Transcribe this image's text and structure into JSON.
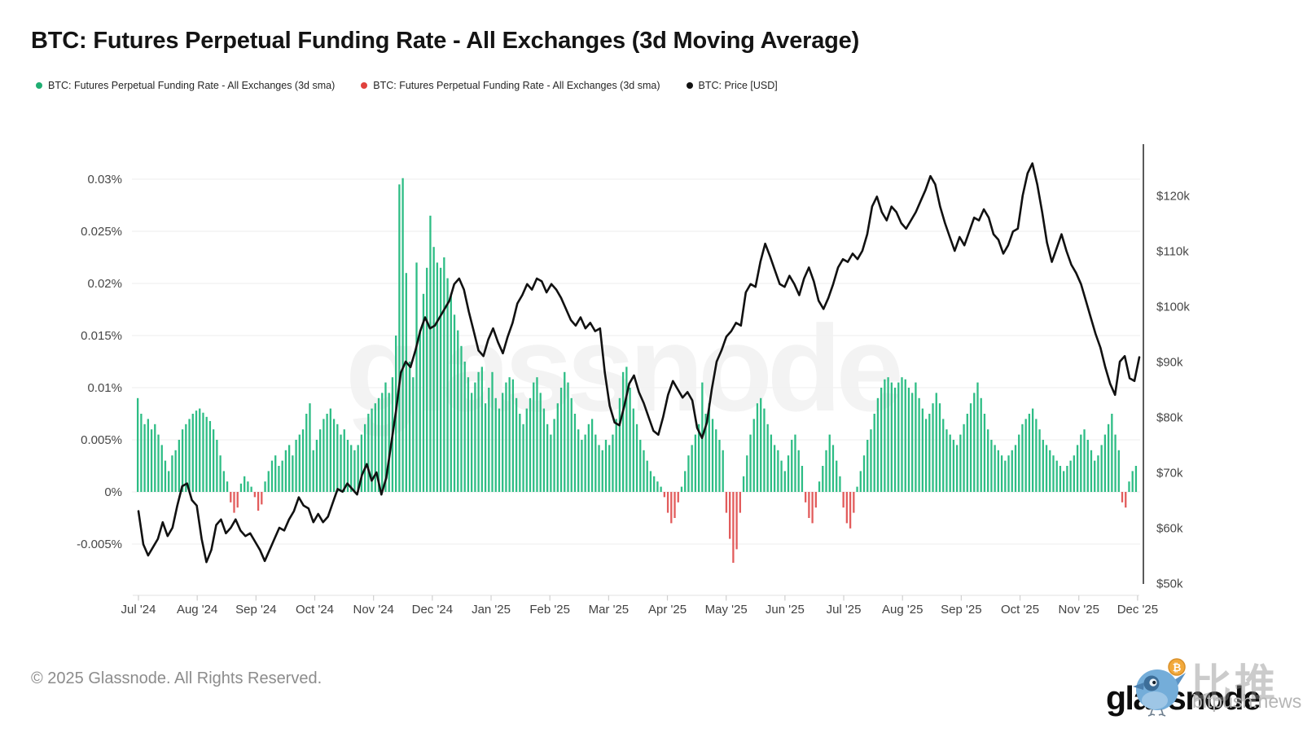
{
  "header": {
    "title": "BTC: Futures Perpetual Funding Rate - All Exchanges (3d Moving Average)"
  },
  "legend": {
    "items": [
      {
        "label": "BTC: Futures Perpetual Funding Rate - All Exchanges (3d sma)",
        "color": "#1FAE72"
      },
      {
        "label": "BTC: Futures Perpetual Funding Rate - All Exchanges (3d sma)",
        "color": "#E0413D"
      },
      {
        "label": "BTC: Price [USD]",
        "color": "#111111"
      }
    ]
  },
  "watermark": {
    "text": "glassnode"
  },
  "footer": {
    "copyright": "© 2025 Glassnode. All Rights Reserved.",
    "logo_text": "glassnode",
    "bitpush_site": "bitpush.news",
    "bitpush_cn": "比推",
    "btc_symbol": "₿"
  },
  "chart_data": {
    "type": "combo",
    "title": "BTC: Futures Perpetual Funding Rate - All Exchanges (3d Moving Average)",
    "grid": true,
    "legend_position": "top-left",
    "x_axis": {
      "tick_labels": [
        "Jul '24",
        "Aug '24",
        "Sep '24",
        "Oct '24",
        "Nov '24",
        "Dec '24",
        "Jan '25",
        "Feb '25",
        "Mar '25",
        "Apr '25",
        "May '25",
        "Jun '25",
        "Jul '25",
        "Aug '25",
        "Sep '25",
        "Oct '25",
        "Nov '25",
        "Dec '25"
      ]
    },
    "left_axis": {
      "unit": "%",
      "tick_labels": [
        "0.03%",
        "0.025%",
        "0.02%",
        "0.015%",
        "0.01%",
        "0.005%",
        "0%",
        "-0.005%"
      ],
      "tick_values": [
        0.03,
        0.025,
        0.02,
        0.015,
        0.01,
        0.005,
        0,
        -0.005
      ],
      "range_pct": [
        -0.009,
        0.0335
      ]
    },
    "right_axis": {
      "unit": "USD",
      "tick_labels": [
        "$120k",
        "$110k",
        "$100k",
        "$90k",
        "$80k",
        "$70k",
        "$60k",
        "$50k"
      ],
      "tick_values_usd_k": [
        120,
        110,
        100,
        90,
        80,
        70,
        60,
        50
      ],
      "range_usd_k": [
        48.5,
        129
      ]
    },
    "series": [
      {
        "name": "BTC: Futures Perpetual Funding Rate - All Exchanges (3d sma)",
        "type": "bar",
        "y_axis": "left",
        "unit": "percent",
        "color_positive": "#2EBD85",
        "color_negative": "#E25C5C",
        "values_pct": [
          0.009,
          0.0075,
          0.0065,
          0.007,
          0.006,
          0.0065,
          0.0055,
          0.0045,
          0.003,
          0.002,
          0.0035,
          0.004,
          0.005,
          0.006,
          0.0065,
          0.007,
          0.0075,
          0.0078,
          0.008,
          0.0076,
          0.0072,
          0.0068,
          0.006,
          0.005,
          0.0035,
          0.002,
          0.001,
          -0.001,
          -0.002,
          -0.0015,
          0.0008,
          0.0015,
          0.001,
          0.0005,
          -0.0005,
          -0.0018,
          -0.0012,
          0.001,
          0.002,
          0.003,
          0.0035,
          0.0025,
          0.003,
          0.004,
          0.0045,
          0.0035,
          0.005,
          0.0055,
          0.006,
          0.0075,
          0.0085,
          0.004,
          0.005,
          0.006,
          0.007,
          0.0075,
          0.008,
          0.007,
          0.0065,
          0.0055,
          0.006,
          0.005,
          0.0045,
          0.004,
          0.0045,
          0.0055,
          0.0065,
          0.0075,
          0.008,
          0.0085,
          0.009,
          0.0095,
          0.0105,
          0.0095,
          0.011,
          0.015,
          0.0295,
          0.0301,
          0.021,
          0.0125,
          0.011,
          0.022,
          0.0155,
          0.019,
          0.0215,
          0.0265,
          0.0235,
          0.022,
          0.0215,
          0.0225,
          0.0205,
          0.019,
          0.017,
          0.0155,
          0.014,
          0.0125,
          0.011,
          0.0095,
          0.0105,
          0.0115,
          0.012,
          0.0085,
          0.01,
          0.0115,
          0.009,
          0.008,
          0.0095,
          0.0105,
          0.011,
          0.0108,
          0.009,
          0.0075,
          0.0065,
          0.008,
          0.009,
          0.0105,
          0.011,
          0.0095,
          0.008,
          0.0065,
          0.0055,
          0.007,
          0.0085,
          0.01,
          0.0115,
          0.0105,
          0.009,
          0.0075,
          0.006,
          0.005,
          0.0055,
          0.0065,
          0.007,
          0.0055,
          0.0045,
          0.004,
          0.005,
          0.0045,
          0.0055,
          0.007,
          0.009,
          0.0115,
          0.012,
          0.01,
          0.008,
          0.0065,
          0.005,
          0.004,
          0.003,
          0.002,
          0.0015,
          0.001,
          0.0005,
          -0.0005,
          -0.002,
          -0.003,
          -0.0025,
          -0.001,
          0.0005,
          0.002,
          0.0035,
          0.0045,
          0.0055,
          0.0065,
          0.0105,
          0.0075,
          0.0085,
          0.007,
          0.006,
          0.005,
          0.004,
          -0.002,
          -0.0045,
          -0.0068,
          -0.0055,
          -0.002,
          0.0015,
          0.0035,
          0.0055,
          0.007,
          0.0085,
          0.009,
          0.008,
          0.0065,
          0.0055,
          0.0045,
          0.004,
          0.003,
          0.002,
          0.0035,
          0.005,
          0.0055,
          0.004,
          0.0025,
          -0.001,
          -0.0025,
          -0.003,
          -0.0015,
          0.001,
          0.0025,
          0.004,
          0.0055,
          0.0045,
          0.003,
          0.0015,
          -0.0015,
          -0.003,
          -0.0035,
          -0.002,
          0.0005,
          0.002,
          0.0035,
          0.005,
          0.006,
          0.0075,
          0.009,
          0.01,
          0.0108,
          0.011,
          0.0105,
          0.01,
          0.0105,
          0.011,
          0.0108,
          0.01,
          0.0095,
          0.0105,
          0.009,
          0.008,
          0.007,
          0.0075,
          0.0085,
          0.0095,
          0.0085,
          0.007,
          0.006,
          0.0055,
          0.005,
          0.0045,
          0.0055,
          0.0065,
          0.0075,
          0.0085,
          0.0095,
          0.0105,
          0.009,
          0.0075,
          0.006,
          0.005,
          0.0045,
          0.004,
          0.0035,
          0.003,
          0.0035,
          0.004,
          0.0045,
          0.0055,
          0.0065,
          0.007,
          0.0075,
          0.008,
          0.007,
          0.006,
          0.005,
          0.0045,
          0.004,
          0.0035,
          0.003,
          0.0025,
          0.002,
          0.0025,
          0.003,
          0.0035,
          0.0045,
          0.0055,
          0.006,
          0.005,
          0.004,
          0.003,
          0.0035,
          0.0045,
          0.0055,
          0.0065,
          0.0075,
          0.0055,
          0.004,
          -0.001,
          -0.0015,
          0.001,
          0.002,
          0.0025
        ]
      },
      {
        "name": "BTC: Price [USD]",
        "type": "line",
        "y_axis": "right",
        "unit": "USD (thousands)",
        "color": "#111111",
        "values_usd_k": [
          63,
          57,
          55,
          56.5,
          58,
          61,
          58.5,
          60,
          64,
          67.5,
          68,
          65,
          64,
          58,
          53.8,
          56,
          60.5,
          61.5,
          59,
          60,
          61.5,
          59.5,
          58.5,
          59,
          57.5,
          56,
          54,
          56,
          58,
          60,
          59.5,
          61.5,
          63,
          65.5,
          64,
          63.5,
          61,
          62.5,
          61,
          62,
          64.5,
          67,
          66.5,
          68,
          67,
          66,
          69.5,
          71.5,
          68.5,
          70,
          66,
          69,
          75,
          81,
          88,
          90,
          89,
          92,
          95.5,
          98,
          96,
          96.5,
          98,
          99.5,
          101,
          104,
          105,
          103,
          99,
          95.5,
          92,
          91,
          94,
          96,
          93.5,
          91.5,
          94.5,
          97,
          100.5,
          102,
          104,
          103,
          105,
          104.5,
          102.5,
          104,
          103,
          101.5,
          99.5,
          97.5,
          96.5,
          98,
          96,
          97,
          95.5,
          96,
          88,
          82,
          79,
          78.5,
          82,
          86,
          87.5,
          84.5,
          82.5,
          80,
          77.5,
          76.8,
          80,
          84,
          86.5,
          85,
          83.5,
          84.5,
          83,
          78,
          76.2,
          79,
          85,
          90,
          92,
          94.5,
          95.5,
          97,
          96.5,
          102.5,
          104,
          103.5,
          108,
          111.3,
          109,
          106.5,
          104,
          103.5,
          105.5,
          104,
          102,
          105,
          107,
          104.5,
          101,
          99.5,
          101.5,
          104,
          107,
          108.5,
          108,
          109.5,
          108.5,
          110,
          113,
          118,
          119.8,
          117,
          115.5,
          118,
          117,
          115,
          114,
          115.5,
          117,
          119,
          121,
          123.5,
          122,
          118,
          115,
          112.5,
          110,
          112.5,
          111,
          113.5,
          116,
          115.5,
          117.5,
          116,
          113,
          112,
          109.5,
          111,
          113.5,
          114,
          120,
          124,
          125.8,
          122,
          117,
          111.5,
          108,
          110.5,
          113,
          110,
          107.5,
          106,
          104,
          101,
          98,
          95,
          92.5,
          89,
          86,
          84,
          90,
          91,
          87,
          86.5,
          90.8
        ]
      }
    ]
  }
}
